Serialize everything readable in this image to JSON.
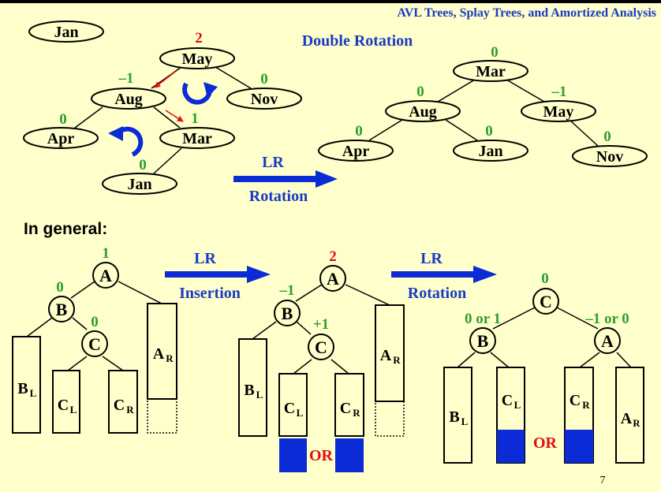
{
  "header": "AVL Trees, Splay Trees, and Amortized Analysis",
  "slide_title": "Double Rotation",
  "general_label": "In general:",
  "page_number": "7",
  "example_before": {
    "nodes": {
      "jan_root": "Jan",
      "may": "May",
      "aug": "Aug",
      "nov": "Nov",
      "apr": "Apr",
      "mar": "Mar",
      "jan": "Jan"
    },
    "balance": {
      "may": "2",
      "aug": "–1",
      "nov": "0",
      "apr": "0",
      "mar": "1",
      "jan": "0"
    }
  },
  "example_after": {
    "nodes": {
      "mar": "Mar",
      "aug": "Aug",
      "may": "May",
      "apr": "Apr",
      "jan": "Jan",
      "nov": "Nov"
    },
    "balance": {
      "mar": "0",
      "aug": "0",
      "may": "–1",
      "apr": "0",
      "jan": "0",
      "nov": "0"
    }
  },
  "arrow_example": {
    "top": "LR",
    "bottom": "Rotation"
  },
  "arrow_insertion": {
    "top": "LR",
    "bottom": "Insertion"
  },
  "arrow_rotation": {
    "top": "LR",
    "bottom": "Rotation"
  },
  "general_1": {
    "nodes": {
      "a": "A",
      "b": "B",
      "c": "C"
    },
    "balance": {
      "a": "1",
      "b": "0",
      "c": "0"
    },
    "subtrees": {
      "bl": "B",
      "bl_sub": "L",
      "cl": "C",
      "cl_sub": "L",
      "cr": "C",
      "cr_sub": "R",
      "ar": "A",
      "ar_sub": "R"
    }
  },
  "general_2": {
    "nodes": {
      "a": "A",
      "b": "B",
      "c": "C"
    },
    "balance": {
      "a": "2",
      "b": "–1",
      "c": "+1"
    },
    "subtrees": {
      "bl": "B",
      "bl_sub": "L",
      "cl": "C",
      "cl_sub": "L",
      "cr": "C",
      "cr_sub": "R",
      "ar": "A",
      "ar_sub": "R"
    },
    "or_label": "OR"
  },
  "general_3": {
    "nodes": {
      "c": "C",
      "b": "B",
      "a": "A"
    },
    "balance": {
      "c": "0",
      "b": "0 or 1",
      "a": "–1 or 0"
    },
    "subtrees": {
      "bl": "B",
      "bl_sub": "L",
      "cl": "C",
      "cl_sub": "L",
      "cr": "C",
      "cr_sub": "R",
      "ar": "A",
      "ar_sub": "R"
    },
    "or_label": "OR"
  },
  "colors": {
    "background": "#ffffcc",
    "blue": "#1a3bc1",
    "green": "#2e9e2e",
    "red": "#e01010",
    "fill_blue": "#0a2bd6"
  }
}
